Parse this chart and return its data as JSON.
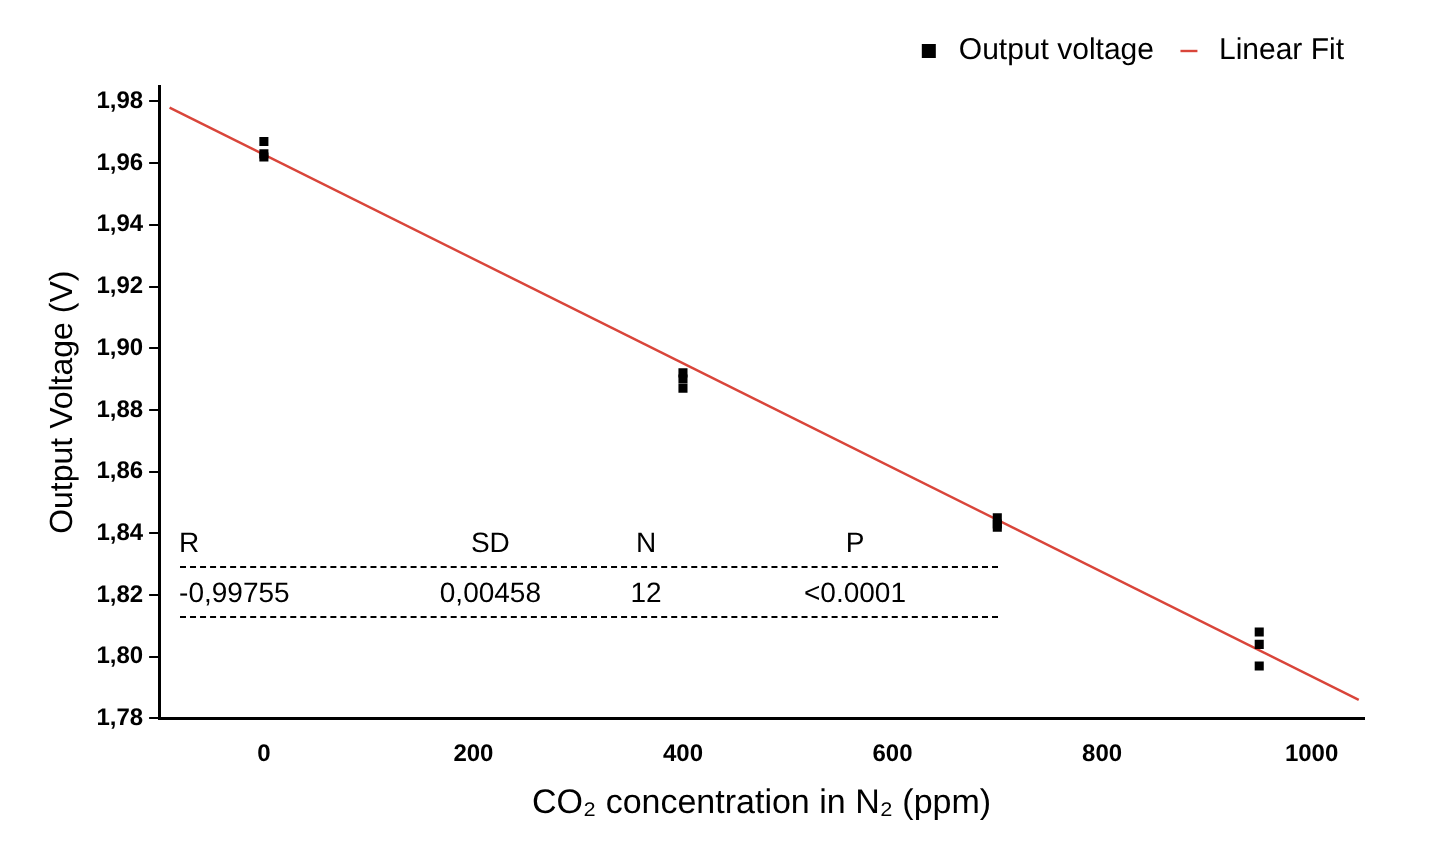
{
  "chart_data": {
    "type": "scatter",
    "xlabel": "CO₂ concentration in N₂ (ppm)",
    "ylabel": "Output Voltage (V)",
    "xlim": [
      -100,
      1050
    ],
    "xticks": [
      0,
      200,
      400,
      600,
      800,
      1000
    ],
    "ylim": [
      1.78,
      1.985
    ],
    "yticks": [
      {
        "value": 1.78,
        "label": "1,78"
      },
      {
        "value": 1.8,
        "label": "1,80"
      },
      {
        "value": 1.82,
        "label": "1,82"
      },
      {
        "value": 1.84,
        "label": "1,84"
      },
      {
        "value": 1.86,
        "label": "1,86"
      },
      {
        "value": 1.88,
        "label": "1,88"
      },
      {
        "value": 1.9,
        "label": "1,90"
      },
      {
        "value": 1.92,
        "label": "1,92"
      },
      {
        "value": 1.94,
        "label": "1,94"
      },
      {
        "value": 1.96,
        "label": "1,96"
      },
      {
        "value": 1.98,
        "label": "1,98"
      }
    ],
    "grid": false,
    "legend": "top right",
    "series": [
      {
        "name": "Output voltage",
        "type": "scatter",
        "marker": "square",
        "color": "#000000",
        "x": [
          0,
          0,
          0,
          400,
          400,
          400,
          700,
          700,
          700,
          950,
          950,
          950
        ],
        "values": [
          1.967,
          1.963,
          1.962,
          1.892,
          1.89,
          1.887,
          1.845,
          1.843,
          1.842,
          1.808,
          1.804,
          1.797
        ]
      },
      {
        "name": "Linear Fit",
        "type": "line",
        "marker": "none",
        "color": "#d9453a",
        "x": [
          -90,
          1045
        ],
        "values": [
          1.978,
          1.786
        ]
      }
    ],
    "annotations": [
      "R",
      "SD",
      "N",
      "P",
      "-0,99755",
      "0,00458",
      "12",
      "<0.0001"
    ]
  }
}
